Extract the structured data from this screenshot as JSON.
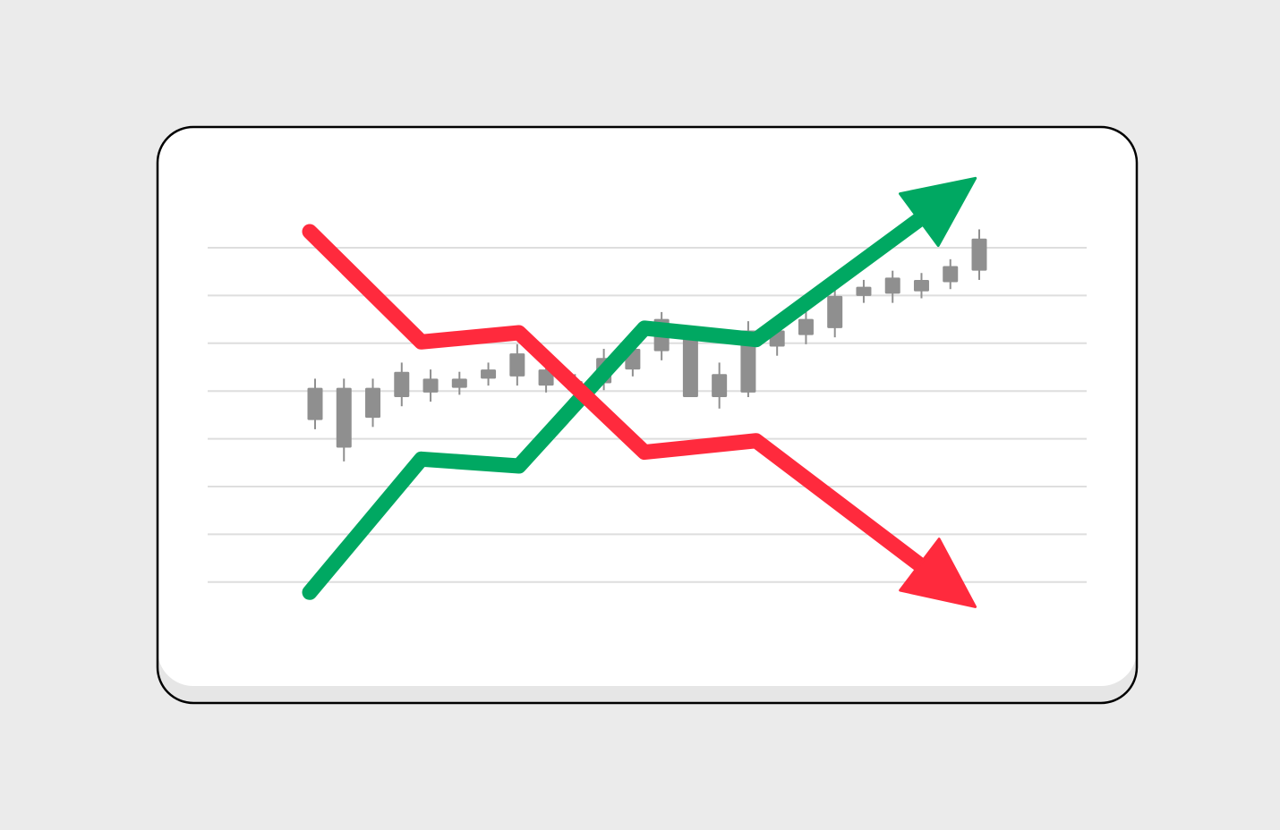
{
  "colors": {
    "background": "#ebebeb",
    "card": "#ffffff",
    "card_shadow": "#e6e6e6",
    "card_border": "#000000",
    "grid": "#dedede",
    "candle": "#8f8f8f",
    "up_trend": "#00a862",
    "down_trend": "#ff2a3d"
  },
  "icons": {
    "up_arrow": "arrow-up-right-icon",
    "down_arrow": "arrow-down-right-icon"
  },
  "chart_data": {
    "type": "candlestick",
    "title": "",
    "xlabel": "",
    "ylabel": "",
    "grid": true,
    "grid_lines": 8,
    "legend": "none",
    "xlim": [
      0,
      24
    ],
    "ylim": [
      0,
      10
    ],
    "candles": [
      {
        "open": 4.6,
        "close": 3.9,
        "high": 4.8,
        "low": 3.7
      },
      {
        "open": 4.6,
        "close": 3.3,
        "high": 4.8,
        "low": 3.0
      },
      {
        "open": 4.6,
        "close": 3.95,
        "high": 4.8,
        "low": 3.75
      },
      {
        "open": 4.95,
        "close": 4.4,
        "high": 5.15,
        "low": 4.2
      },
      {
        "open": 4.8,
        "close": 4.5,
        "high": 5.0,
        "low": 4.3
      },
      {
        "open": 4.8,
        "close": 4.6,
        "high": 4.95,
        "low": 4.45
      },
      {
        "open": 5.0,
        "close": 4.8,
        "high": 5.15,
        "low": 4.65
      },
      {
        "open": 5.35,
        "close": 4.85,
        "high": 5.55,
        "low": 4.65
      },
      {
        "open": 5.0,
        "close": 4.65,
        "high": 5.2,
        "low": 4.5
      },
      {
        "open": 4.75,
        "close": 4.55,
        "high": 4.9,
        "low": 4.4
      },
      {
        "open": 5.25,
        "close": 4.7,
        "high": 5.45,
        "low": 4.55
      },
      {
        "open": 5.45,
        "close": 5.0,
        "high": 5.65,
        "low": 4.85
      },
      {
        "open": 6.1,
        "close": 5.4,
        "high": 6.25,
        "low": 5.2
      },
      {
        "open": 5.8,
        "close": 4.4,
        "high": 5.8,
        "low": 4.4
      },
      {
        "open": 4.9,
        "close": 4.4,
        "high": 5.15,
        "low": 4.15
      },
      {
        "open": 5.85,
        "close": 4.5,
        "high": 6.05,
        "low": 4.4
      },
      {
        "open": 5.85,
        "close": 5.5,
        "high": 6.0,
        "low": 5.3
      },
      {
        "open": 6.1,
        "close": 5.75,
        "high": 6.3,
        "low": 5.55
      },
      {
        "open": 6.6,
        "close": 5.9,
        "high": 6.85,
        "low": 5.7
      },
      {
        "open": 6.8,
        "close": 6.6,
        "high": 6.95,
        "low": 6.45
      },
      {
        "open": 7.0,
        "close": 6.65,
        "high": 7.15,
        "low": 6.45
      },
      {
        "open": 6.95,
        "close": 6.7,
        "high": 7.1,
        "low": 6.55
      },
      {
        "open": 7.25,
        "close": 6.9,
        "high": 7.4,
        "low": 6.75
      },
      {
        "open": 7.85,
        "close": 7.15,
        "high": 8.05,
        "low": 6.95
      }
    ],
    "series": [
      {
        "color": "#00a862",
        "points": [
          [
            0,
            0.15
          ],
          [
            4,
            3.05
          ],
          [
            7.5,
            2.9
          ],
          [
            12,
            5.9
          ],
          [
            16,
            5.65
          ],
          [
            23.5,
            9.0
          ]
        ]
      },
      {
        "color": "#ff2a3d",
        "points": [
          [
            0,
            8.0
          ],
          [
            4,
            5.6
          ],
          [
            7.5,
            5.8
          ],
          [
            12,
            3.2
          ],
          [
            16,
            3.45
          ],
          [
            23.5,
            0.0
          ]
        ]
      }
    ]
  }
}
